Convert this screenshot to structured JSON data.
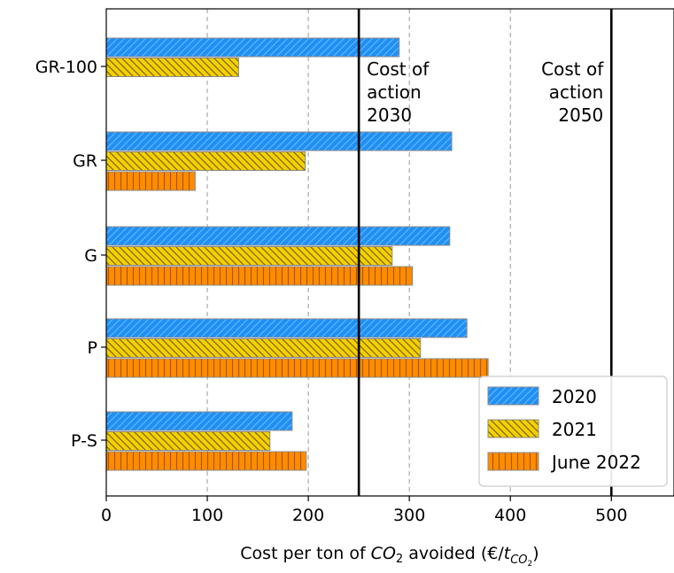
{
  "chart_data": {
    "type": "bar",
    "orientation": "horizontal",
    "title": "",
    "ylabel": "",
    "xlabel": {
      "prefix": "Cost per ton of ",
      "co2_base": "CO",
      "co2_sub": "2",
      "middle": " avoided (€/",
      "t_base": "t",
      "t_sub": "CO",
      "t_subsub": "2",
      "suffix": ")"
    },
    "categories": [
      "GR-100",
      "GR",
      "G",
      "P",
      "P-S"
    ],
    "xlim": [
      0,
      562
    ],
    "xticks": [
      0,
      100,
      200,
      300,
      400,
      500
    ],
    "xtick_labels": [
      "0",
      "100",
      "200",
      "300",
      "400",
      "500"
    ],
    "grid": "vertical dashed at x ticks",
    "series": [
      {
        "name": "2020",
        "values": [
          290,
          342,
          340,
          357,
          184
        ],
        "color": "#1f8ff5",
        "hatch": "diagonal"
      },
      {
        "name": "2021",
        "values": [
          131,
          197,
          283,
          311,
          162
        ],
        "color": "#f5d000",
        "hatch": "back-diagonal"
      },
      {
        "name": "June 2022",
        "values": [
          null,
          88,
          303,
          378,
          198
        ],
        "color": "#ff8c00",
        "hatch": "vertical"
      }
    ],
    "reference_lines": [
      {
        "x": 250,
        "label_lines": [
          "Cost of",
          "action",
          "2030"
        ],
        "align": "left"
      },
      {
        "x": 500,
        "label_lines": [
          "Cost of",
          "action",
          "2050"
        ],
        "align": "right"
      }
    ],
    "legend": {
      "position": "lower-right"
    }
  }
}
